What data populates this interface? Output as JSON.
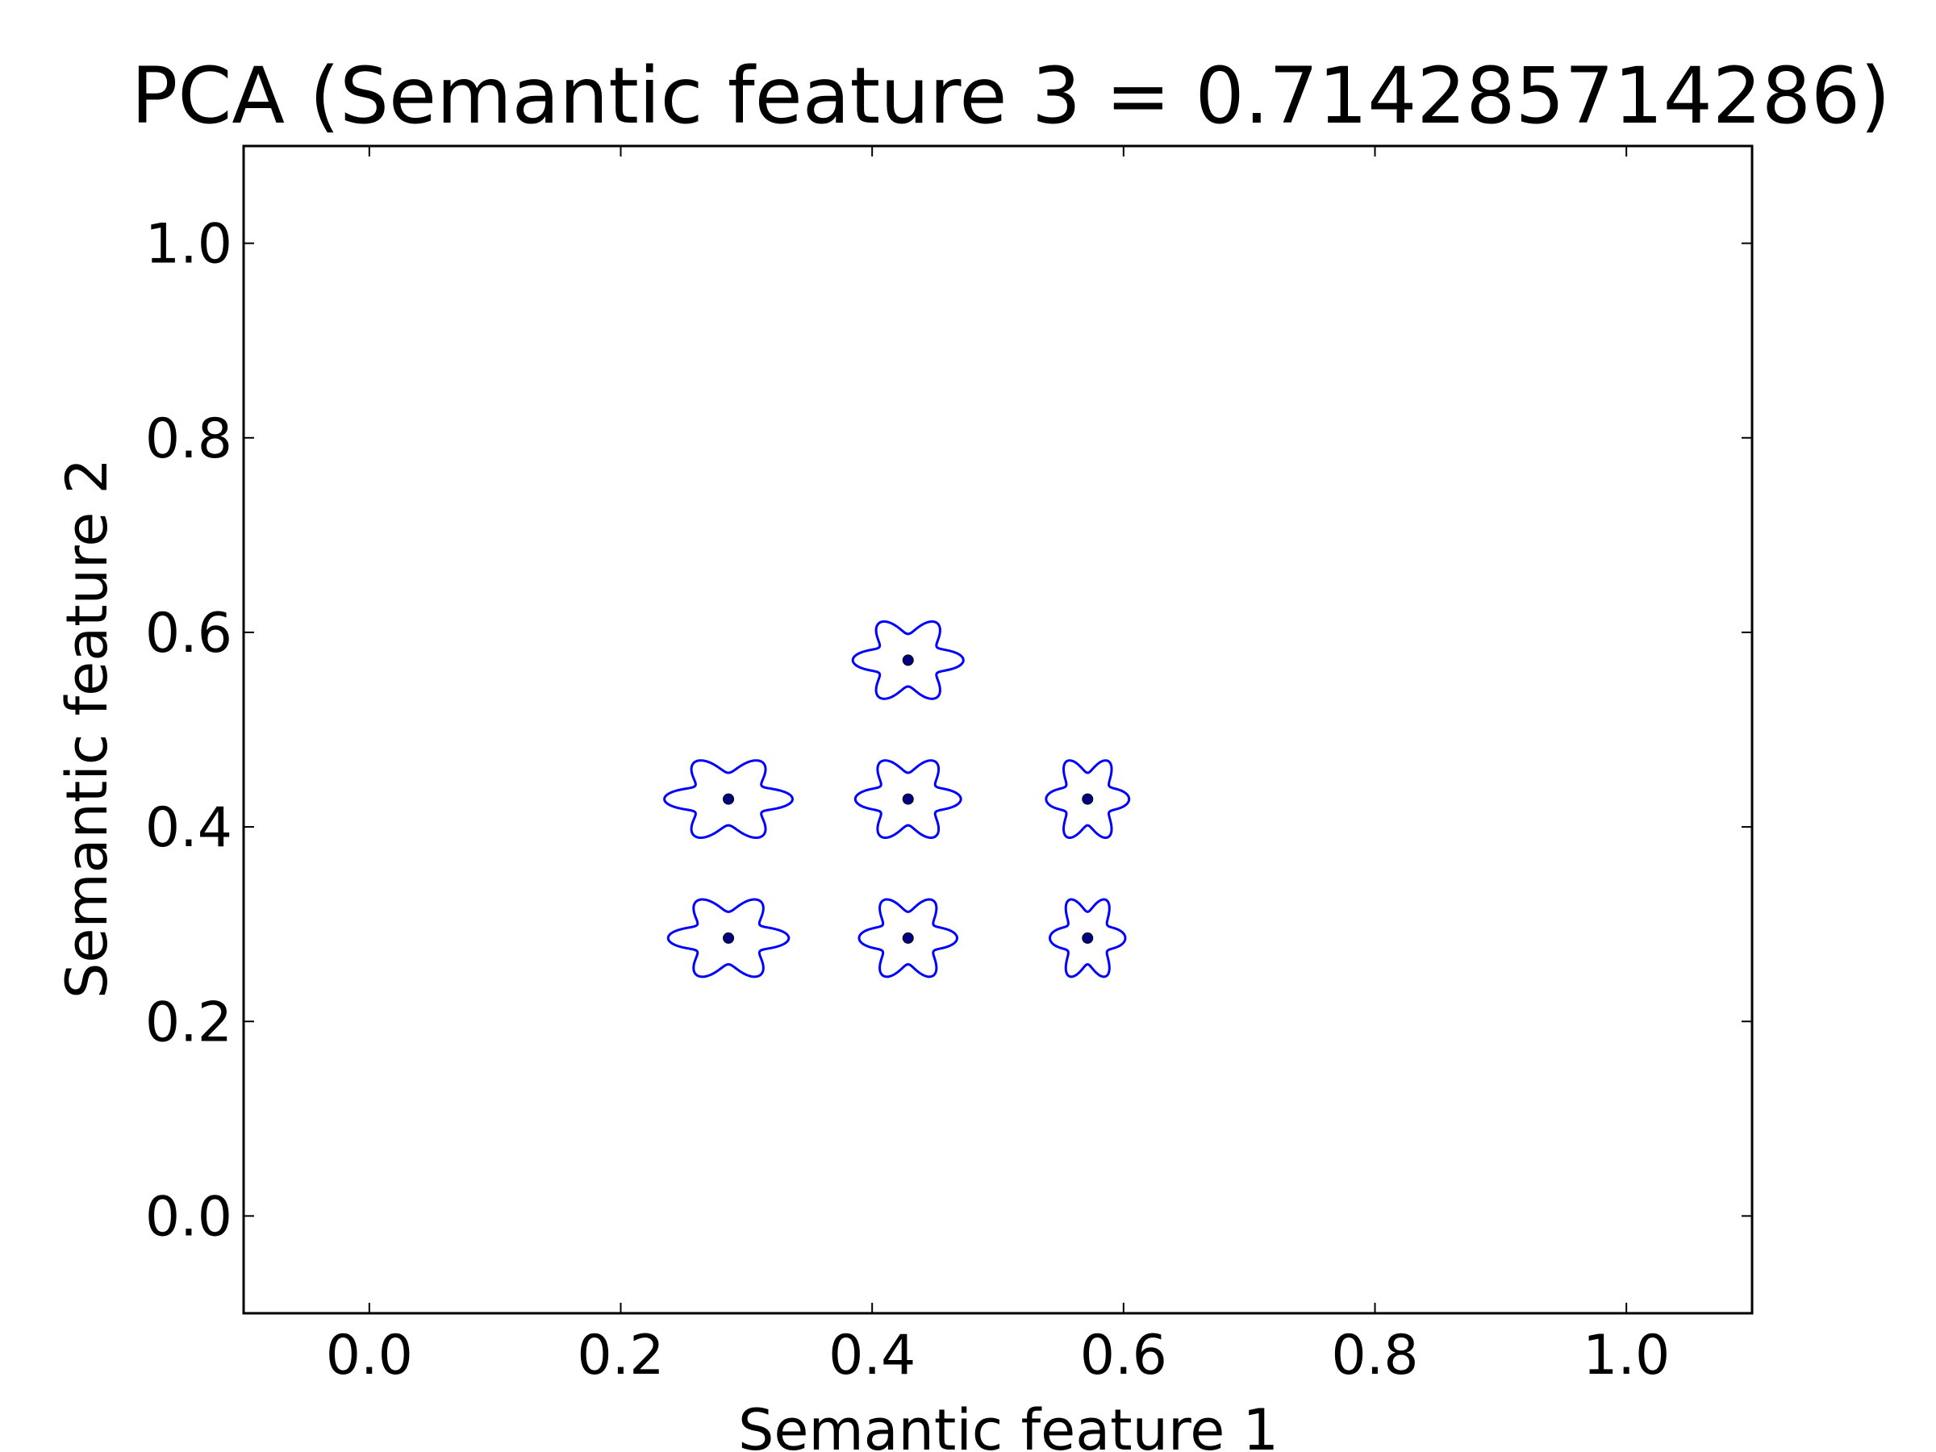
{
  "chart_data": {
    "type": "scatter",
    "title": "PCA (Semantic feature 3 = 0.714285714286)",
    "xlabel": "Semantic feature 1",
    "ylabel": "Semantic feature 2",
    "xlim": [
      -0.1,
      1.1
    ],
    "ylim": [
      -0.1,
      1.1
    ],
    "xticks": [
      0.0,
      0.2,
      0.4,
      0.6,
      0.8,
      1.0
    ],
    "yticks": [
      0.0,
      0.2,
      0.4,
      0.6,
      0.8,
      1.0
    ],
    "tick_labels_x": [
      "0.0",
      "0.2",
      "0.4",
      "0.6",
      "0.8",
      "1.0"
    ],
    "tick_labels_y": [
      "0.0",
      "0.2",
      "0.4",
      "0.6",
      "0.8",
      "1.0"
    ],
    "grid": false,
    "legend": "none",
    "point_color": "#000080",
    "contour_color": "#0000ff",
    "points": [
      {
        "x": 0.4286,
        "y": 0.5714,
        "half_width": 0.044,
        "half_height": 0.045
      },
      {
        "x": 0.2857,
        "y": 0.4286,
        "half_width": 0.051,
        "half_height": 0.045
      },
      {
        "x": 0.4286,
        "y": 0.4286,
        "half_width": 0.042,
        "half_height": 0.045
      },
      {
        "x": 0.5714,
        "y": 0.4286,
        "half_width": 0.033,
        "half_height": 0.045
      },
      {
        "x": 0.2857,
        "y": 0.2857,
        "half_width": 0.048,
        "half_height": 0.045
      },
      {
        "x": 0.4286,
        "y": 0.2857,
        "half_width": 0.039,
        "half_height": 0.045
      },
      {
        "x": 0.5714,
        "y": 0.2857,
        "half_width": 0.03,
        "half_height": 0.045
      }
    ]
  }
}
